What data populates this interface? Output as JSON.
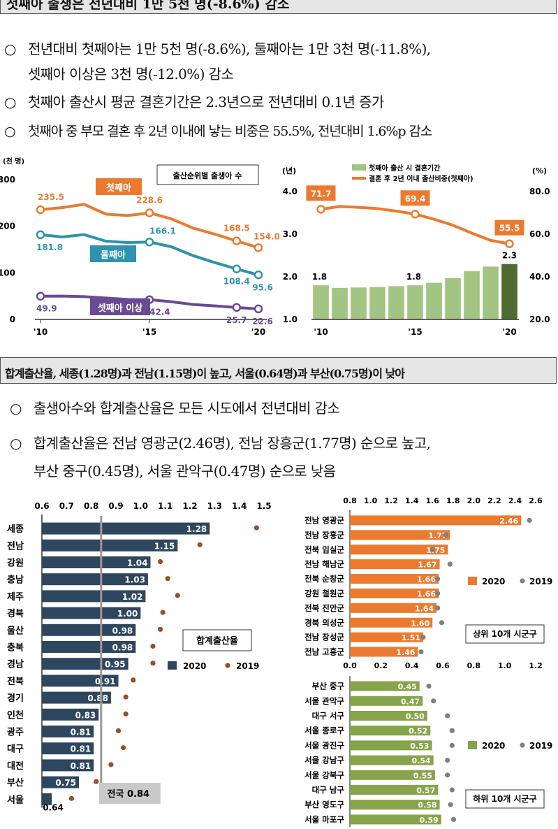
{
  "section1": {
    "header": "첫째아 출생은 전년대비 1만 5천 명(-8.6%) 감소",
    "bullet_marker": "○",
    "bullets": [
      "전년대비 첫째아는 1만 5천 명(-8.6%), 둘째아는 1만 3천 명(-11.8%),",
      "셋째아 이상은 3천 명(-12.0%) 감소",
      "첫째아 출산시 평균 결혼기간은 2.3년으로 전년대비 0.1년 증가",
      "첫째아 중 부모 결혼 후 2년 이내에 낳는 비중은 55.5%, 전년대비 1.6%p 감소"
    ]
  },
  "section2": {
    "header": "합계출산율, 세종(1.28명)과 전남(1.15명)이 높고, 서울(0.64명)과 부산(0.75명)이 낮아",
    "bullets": [
      "출생아수와 합계출산율은 모든 시도에서 전년대비 감소",
      "합계출산율은 전남 영광군(2.46명), 전남 장흥군(1.77명) 순으로 높고,",
      "부산 중구(0.45명), 서울 관악구(0.47명) 순으로 낮음"
    ]
  },
  "colors": {
    "first": "#ec7a2e",
    "second": "#2f92ae",
    "third": "#6b4a94",
    "bar_green": "#a3c583",
    "bar_dark": "#506a30",
    "navy": "#2e475e",
    "dot_2019": "#9b4f25",
    "orange_bar": "#ec7a2e",
    "olive_bar": "#86a449",
    "gray_dot": "#808080"
  },
  "chart_data": [
    {
      "type": "line",
      "title": "출산순위별 출생아 수",
      "unit_label": "(천 명)",
      "x": [
        2010,
        2011,
        2012,
        2013,
        2014,
        2015,
        2016,
        2017,
        2018,
        2019,
        2020
      ],
      "xticks": [
        "'10",
        "'15",
        "'20"
      ],
      "ylim": [
        0,
        300
      ],
      "yticks": [
        "0",
        "100",
        "200",
        "300"
      ],
      "series": [
        {
          "name": "첫째아",
          "values": [
            235.5,
            240,
            247,
            226,
            223,
            228.6,
            216,
            196,
            183,
            168.5,
            154.0
          ],
          "labels": [
            "235.5",
            "228.6",
            "168.5",
            "154.0"
          ]
        },
        {
          "name": "둘째아",
          "values": [
            181.8,
            177,
            182,
            168,
            165,
            166.1,
            156,
            137,
            122,
            108.4,
            95.6
          ],
          "labels": [
            "181.8",
            "166.1",
            "108.4",
            "95.6"
          ]
        },
        {
          "name": "셋째아 이상",
          "values": [
            49.9,
            50,
            49,
            46,
            43,
            42.4,
            38,
            32,
            29,
            25.7,
            22.6
          ],
          "labels": [
            "49.9",
            "42.4",
            "25.7",
            "22.6"
          ]
        }
      ]
    },
    {
      "type": "bar+line",
      "left_unit": "(년)",
      "right_unit": "(%)",
      "xticks": [
        "'10",
        "'15",
        "'20"
      ],
      "x": [
        2010,
        2011,
        2012,
        2013,
        2014,
        2015,
        2016,
        2017,
        2018,
        2019,
        2020
      ],
      "legend": [
        "첫째아 출산 시 결혼기간",
        "결혼 후 2년 이내 출산비중(첫째아)"
      ],
      "bar_ylim": [
        1.0,
        4.0
      ],
      "bar_yticks": [
        "1.0",
        "2.0",
        "3.0",
        "4.0"
      ],
      "line_ylim": [
        20.0,
        80.0
      ],
      "line_yticks": [
        "20.0",
        "40.0",
        "60.0",
        "80.0"
      ],
      "bars": [
        1.8,
        1.74,
        1.75,
        1.76,
        1.78,
        1.8,
        1.86,
        1.97,
        2.13,
        2.24,
        2.3
      ],
      "bar_labels": [
        "1.8",
        "1.8",
        "2.3"
      ],
      "line": [
        71.7,
        73.0,
        72.6,
        72.0,
        70.8,
        69.4,
        67.0,
        64.2,
        60.5,
        57.1,
        55.5
      ],
      "line_labels": [
        "71.7",
        "69.4",
        "55.5"
      ]
    },
    {
      "type": "bar",
      "title": "합계출산율",
      "legend": [
        "2020",
        "2019"
      ],
      "xlim": [
        0.6,
        1.5
      ],
      "xticks": [
        "0.6",
        "0.7",
        "0.8",
        "0.9",
        "1.0",
        "1.1",
        "1.2",
        "1.3",
        "1.4",
        "1.5"
      ],
      "reference": {
        "label": "전국 0.84",
        "value": 0.84
      },
      "categories": [
        "세종",
        "전남",
        "강원",
        "충남",
        "제주",
        "경북",
        "울산",
        "충북",
        "경남",
        "전북",
        "경기",
        "인천",
        "광주",
        "대구",
        "대전",
        "부산",
        "서울"
      ],
      "values_2020": [
        1.28,
        1.15,
        1.04,
        1.03,
        1.02,
        1.0,
        0.98,
        0.98,
        0.95,
        0.91,
        0.88,
        0.83,
        0.81,
        0.81,
        0.81,
        0.75,
        0.64
      ],
      "labels_2020": [
        "1.28",
        "1.15",
        "1.04",
        "1.03",
        "1.02",
        "1.00",
        "0.98",
        "0.98",
        "0.95",
        "0.91",
        "0.88",
        "0.83",
        "0.81",
        "0.81",
        "0.81",
        "0.75",
        "0.64"
      ],
      "values_2019": [
        1.47,
        1.24,
        1.08,
        1.11,
        1.15,
        1.09,
        1.08,
        1.05,
        1.05,
        0.97,
        0.94,
        0.94,
        0.91,
        0.93,
        0.88,
        0.82,
        0.72
      ]
    },
    {
      "type": "bar",
      "title": "상위 10개 시군구",
      "legend": [
        "2020",
        "2019"
      ],
      "xlim": [
        0.8,
        2.6
      ],
      "xticks": [
        "0.8",
        "1.0",
        "1.2",
        "1.4",
        "1.6",
        "1.8",
        "2.0",
        "2.2",
        "2.4",
        "2.6"
      ],
      "categories": [
        "전남 영광군",
        "전남 장흥군",
        "전북 임실군",
        "전남 해남군",
        "전북 순창군",
        "강원 철원군",
        "전북 진안군",
        "경북 의성군",
        "전남 장성군",
        "전남 고흥군"
      ],
      "values_2020": [
        2.46,
        1.77,
        1.75,
        1.67,
        1.66,
        1.66,
        1.64,
        1.6,
        1.51,
        1.46
      ],
      "labels_2020": [
        "2.46",
        "1.77",
        "1.75",
        "1.67",
        "1.66",
        "1.66",
        "1.64",
        "1.60",
        "1.51",
        "1.46"
      ],
      "values_2019": [
        2.54,
        1.73,
        1.6,
        1.77,
        1.65,
        1.65,
        1.65,
        1.69,
        1.51,
        1.49
      ]
    },
    {
      "type": "bar",
      "title": "하위 10개 시군구",
      "legend": [
        "2020",
        "2019"
      ],
      "xlim": [
        0.0,
        1.2
      ],
      "xticks": [
        "0.0",
        "0.2",
        "0.4",
        "0.6",
        "0.8",
        "1.0",
        "1.2"
      ],
      "categories": [
        "부산 중구",
        "서울 관악구",
        "대구 서구",
        "서울 종로구",
        "서울 광진구",
        "서울 강남구",
        "서울 강북구",
        "대구 남구",
        "부산 영도구",
        "서울 마포구"
      ],
      "values_2020": [
        0.45,
        0.47,
        0.5,
        0.52,
        0.53,
        0.54,
        0.55,
        0.57,
        0.58,
        0.59
      ],
      "labels_2020": [
        "0.45",
        "0.47",
        "0.50",
        "0.52",
        "0.53",
        "0.54",
        "0.55",
        "0.57",
        "0.58",
        "0.59"
      ],
      "values_2019": [
        0.51,
        0.54,
        0.63,
        0.66,
        0.66,
        0.63,
        0.63,
        0.66,
        0.65,
        0.67
      ]
    }
  ]
}
